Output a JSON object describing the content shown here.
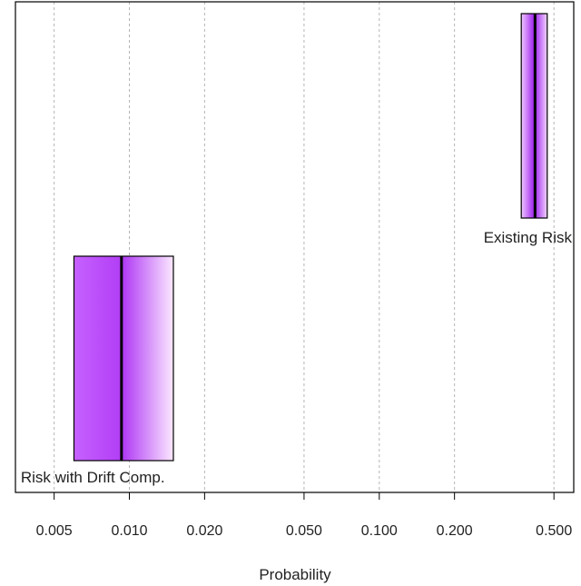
{
  "chart_data": {
    "type": "interval",
    "xlabel": "Probability",
    "xscale": "log",
    "xlim": [
      0.0035,
      0.6
    ],
    "tick_values": [
      0.005,
      0.01,
      0.02,
      0.05,
      0.1,
      0.2,
      0.5
    ],
    "tick_labels": [
      "0.005",
      "0.010",
      "0.020",
      "0.050",
      "0.100",
      "0.200",
      "0.500"
    ],
    "grid": "vertical dotted at ticks",
    "series": [
      {
        "name": "Existing Risk",
        "low": 0.37,
        "median": 0.42,
        "high": 0.47
      },
      {
        "name": "Risk with Drift Comp.",
        "low": 0.006,
        "median": 0.0093,
        "high": 0.015
      }
    ],
    "colors": {
      "fill_dark": "#b13cf5",
      "fill_light": "#fbe8ff",
      "median_line": "#000000",
      "frame": "#000000",
      "grid": "#b5b5b5"
    }
  }
}
